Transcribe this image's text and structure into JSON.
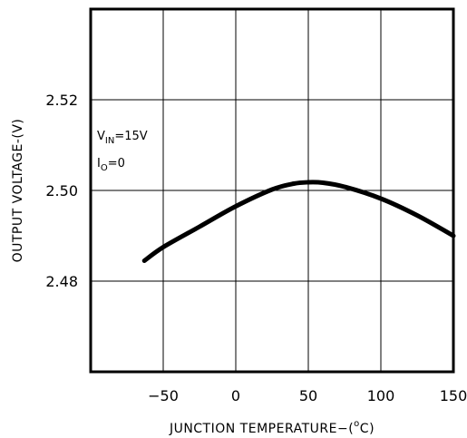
{
  "chart_data": {
    "type": "line",
    "xlabel": "JUNCTION TEMPERATURE-(°C)",
    "xlabel_parts": {
      "prefix": "JUNCTION TEMPERATURE−(",
      "superscript": "o",
      "suffix": "C)"
    },
    "ylabel": "OUTPUT VOLTAGE-(V)",
    "xlim": [
      -100,
      150
    ],
    "ylim": [
      2.46,
      2.54
    ],
    "x_ticks": [
      -50,
      0,
      50,
      100,
      150
    ],
    "x_tick_labels": [
      "−50",
      "0",
      "50",
      "100",
      "150"
    ],
    "y_ticks": [
      2.48,
      2.5,
      2.52
    ],
    "y_tick_labels": [
      "2.48",
      "2.50",
      "2.52"
    ],
    "grid": true,
    "annotations": [
      {
        "main": "V",
        "sub": "IN",
        "rest": "=15V"
      },
      {
        "main": "I",
        "sub": "O",
        "rest": "=0"
      }
    ],
    "series": [
      {
        "x": [
          -63,
          -50,
          -25,
          0,
          25,
          40,
          50,
          60,
          75,
          100,
          125,
          150
        ],
        "values": [
          2.4845,
          2.4875,
          2.492,
          2.4965,
          2.5002,
          2.5015,
          2.5018,
          2.5017,
          2.5008,
          2.4982,
          2.4945,
          2.49
        ]
      }
    ]
  }
}
